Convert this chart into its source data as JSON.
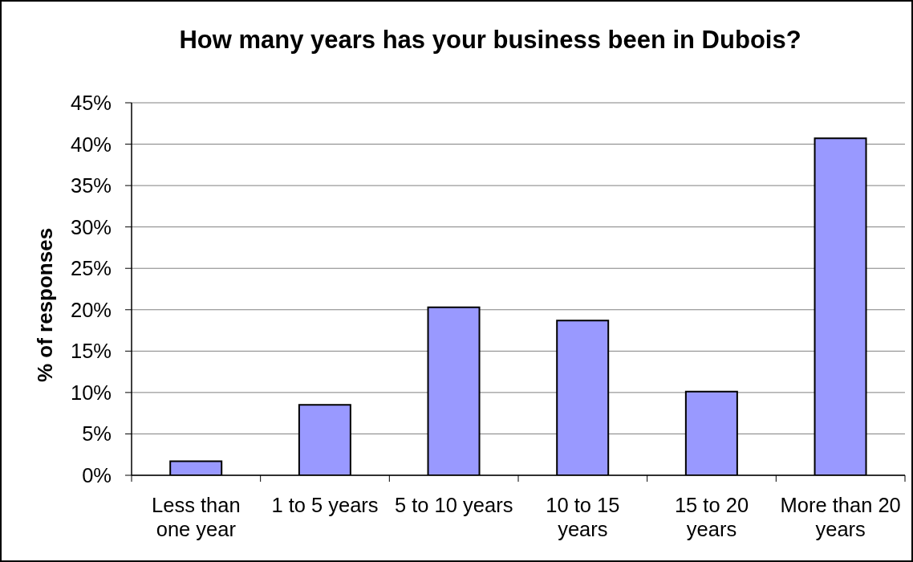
{
  "chart_data": {
    "type": "bar",
    "title": "How many years has your business been in Dubois?",
    "ylabel": "% of responses",
    "categories": [
      "Less than one year",
      "1 to 5 years",
      "5 to 10 years",
      "10 to 15 years",
      "15 to 20 years",
      "More than 20 years"
    ],
    "values": [
      1.7,
      8.5,
      20.3,
      18.7,
      10.1,
      40.7
    ],
    "color": "#9999ff",
    "ylim": [
      0,
      45
    ],
    "yticks": [
      {
        "value": 0,
        "label": "0%"
      },
      {
        "value": 5,
        "label": "5%"
      },
      {
        "value": 10,
        "label": "10%"
      },
      {
        "value": 15,
        "label": "15%"
      },
      {
        "value": 20,
        "label": "20%"
      },
      {
        "value": 25,
        "label": "25%"
      },
      {
        "value": 30,
        "label": "30%"
      },
      {
        "value": 35,
        "label": "35%"
      },
      {
        "value": 40,
        "label": "40%"
      },
      {
        "value": 45,
        "label": "45%"
      }
    ],
    "grid": "y"
  }
}
